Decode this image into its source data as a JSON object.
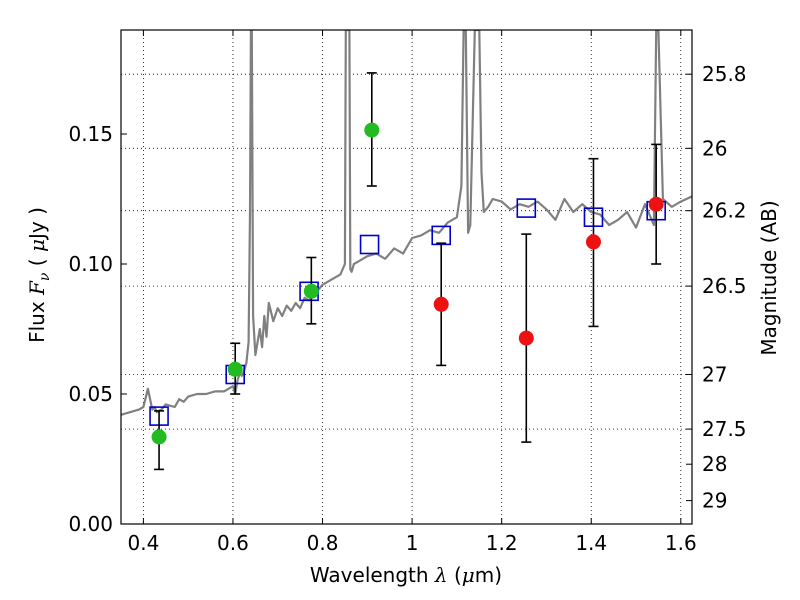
{
  "chart_data": {
    "type": "scatter",
    "title": "",
    "xlabel_parts": [
      "Wavelength  ",
      "λ",
      " (",
      "μ",
      "m)"
    ],
    "ylabel_parts": [
      "Flux  ",
      "F",
      "ν",
      "  ( ",
      "μ",
      "Jy )"
    ],
    "y2label": "Magnitude (AB)",
    "xlim": [
      0.35,
      1.625
    ],
    "ylim": [
      0.0,
      0.19
    ],
    "grid": true,
    "grid_style": "dotted",
    "x_ticks": [
      0.4,
      0.6,
      0.8,
      1.0,
      1.2,
      1.4,
      1.6
    ],
    "x_tick_labels": [
      "0.4",
      "0.6",
      "0.8",
      "1",
      "1.2",
      "1.4",
      "1.6"
    ],
    "y_ticks": [
      0.0,
      0.05,
      0.1,
      0.15
    ],
    "y_tick_labels": [
      "0.00",
      "0.05",
      "0.10",
      "0.15"
    ],
    "y2_ticks": [
      {
        "label": "25.8",
        "flux": 0.173
      },
      {
        "label": "26",
        "flux": 0.1445
      },
      {
        "label": "26.2",
        "flux": 0.1205
      },
      {
        "label": "26.5",
        "flux": 0.0915
      },
      {
        "label": "27",
        "flux": 0.0575
      },
      {
        "label": "27.5",
        "flux": 0.0365
      },
      {
        "label": "28",
        "flux": 0.023
      },
      {
        "label": "29",
        "flux": 0.009
      }
    ],
    "y2_grid_labels": [
      "25.8",
      "26",
      "26.2",
      "26.5",
      "27",
      "27.5"
    ],
    "colors": {
      "spectrum": "#808080",
      "model_box": "#0000cc",
      "green": "#22bb22",
      "red": "#ee1111",
      "errorbar": "#000000"
    },
    "series": [
      {
        "marker": "line",
        "x": [
          0.35,
          0.37,
          0.39,
          0.4,
          0.41,
          0.42,
          0.425,
          0.43,
          0.44,
          0.45,
          0.47,
          0.48,
          0.49,
          0.5,
          0.52,
          0.54,
          0.56,
          0.58,
          0.6,
          0.605,
          0.61,
          0.615,
          0.62,
          0.625,
          0.63,
          0.635,
          0.638,
          0.64,
          0.642,
          0.645,
          0.65,
          0.655,
          0.66,
          0.665,
          0.67,
          0.675,
          0.68,
          0.69,
          0.7,
          0.71,
          0.72,
          0.73,
          0.74,
          0.75,
          0.76,
          0.77,
          0.78,
          0.79,
          0.8,
          0.82,
          0.84,
          0.85,
          0.852,
          0.855,
          0.86,
          0.862,
          0.865,
          0.87,
          0.88,
          0.9,
          0.92,
          0.94,
          0.96,
          0.98,
          1.0,
          1.02,
          1.04,
          1.06,
          1.08,
          1.1,
          1.11,
          1.115,
          1.12,
          1.125,
          1.13,
          1.14,
          1.145,
          1.15,
          1.155,
          1.16,
          1.17,
          1.18,
          1.2,
          1.22,
          1.24,
          1.26,
          1.28,
          1.3,
          1.32,
          1.34,
          1.36,
          1.38,
          1.4,
          1.42,
          1.44,
          1.46,
          1.48,
          1.5,
          1.52,
          1.54,
          1.545,
          1.55,
          1.56,
          1.58,
          1.6,
          1.625
        ],
        "y": [
          0.042,
          0.043,
          0.044,
          0.045,
          0.052,
          0.044,
          0.045,
          0.043,
          0.044,
          0.046,
          0.045,
          0.048,
          0.047,
          0.049,
          0.05,
          0.05,
          0.051,
          0.051,
          0.053,
          0.05,
          0.055,
          0.058,
          0.057,
          0.059,
          0.062,
          0.07,
          0.12,
          0.19,
          0.19,
          0.08,
          0.065,
          0.07,
          0.075,
          0.068,
          0.08,
          0.072,
          0.085,
          0.078,
          0.083,
          0.08,
          0.084,
          0.082,
          0.085,
          0.083,
          0.087,
          0.086,
          0.088,
          0.09,
          0.092,
          0.094,
          0.096,
          0.1,
          0.19,
          0.19,
          0.19,
          0.098,
          0.097,
          0.1,
          0.101,
          0.103,
          0.104,
          0.102,
          0.106,
          0.104,
          0.11,
          0.111,
          0.113,
          0.112,
          0.116,
          0.118,
          0.13,
          0.19,
          0.19,
          0.112,
          0.115,
          0.19,
          0.19,
          0.19,
          0.135,
          0.12,
          0.122,
          0.125,
          0.124,
          0.121,
          0.123,
          0.122,
          0.124,
          0.121,
          0.117,
          0.125,
          0.12,
          0.123,
          0.12,
          0.119,
          0.115,
          0.117,
          0.12,
          0.114,
          0.123,
          0.115,
          0.19,
          0.19,
          0.125,
          0.122,
          0.124,
          0.126
        ]
      },
      {
        "marker": "square",
        "x": [
          0.435,
          0.605,
          0.77,
          0.905,
          1.065,
          1.255,
          1.405,
          1.545
        ],
        "y": [
          0.0415,
          0.0575,
          0.0895,
          0.1075,
          0.111,
          0.1215,
          0.118,
          0.1205
        ]
      },
      {
        "marker": "circle-green",
        "x": [
          0.435,
          0.605,
          0.775,
          0.91
        ],
        "y": [
          0.0335,
          0.0595,
          0.0895,
          0.1515
        ],
        "err_low": [
          0.021,
          0.05,
          0.077,
          0.13
        ],
        "err_high": [
          0.0435,
          0.0695,
          0.1025,
          0.1735
        ]
      },
      {
        "marker": "circle-red",
        "x": [
          1.065,
          1.255,
          1.405,
          1.545
        ],
        "y": [
          0.0845,
          0.0715,
          0.1085,
          0.123
        ],
        "err_low": [
          0.061,
          0.0315,
          0.076,
          0.1
        ],
        "err_high": [
          0.108,
          0.1115,
          0.1405,
          0.146
        ]
      }
    ]
  }
}
